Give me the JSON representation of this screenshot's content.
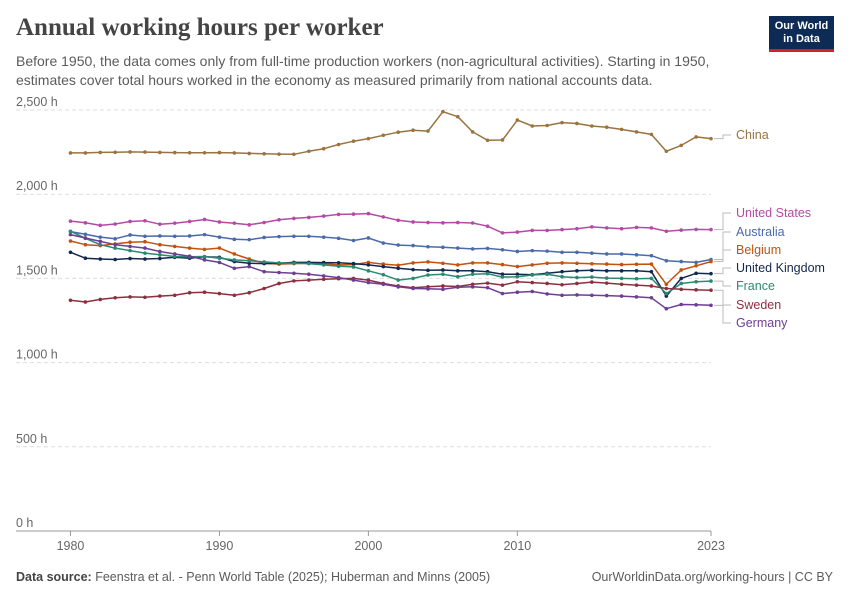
{
  "title": "Annual working hours per worker",
  "subtitle": "Before 1950, the data comes only from full-time production workers (non-agricultural activities). Starting in 1950, estimates cover total hours worked in the economy as measured primarily from national accounts data.",
  "logo": {
    "line1": "Our World",
    "line2": "in Data"
  },
  "footer": {
    "source_label": "Data source:",
    "source_text": "Feenstra et al. - Penn World Table (2025); Huberman and Minns (2005)",
    "url_text": "OurWorldinData.org/working-hours | CC BY"
  },
  "colors": {
    "brand": "#0d2b55",
    "accent": "#ce261e"
  },
  "chart_data": {
    "type": "line",
    "title": "Annual working hours per worker",
    "xlabel": "",
    "ylabel": "",
    "xlim": [
      1979.7,
      2023
    ],
    "ylim": [
      0,
      2500
    ],
    "x_tick_labels": [
      "1980",
      "1990",
      "2000",
      "2010",
      "2023"
    ],
    "x_ticks": [
      1980,
      1990,
      2000,
      2010,
      2023
    ],
    "y_ticks": [
      0,
      500,
      1000,
      1500,
      2000,
      2500
    ],
    "y_tick_labels": [
      "0 h",
      "500 h",
      "1,000 h",
      "1,500 h",
      "2,000 h",
      "2,500 h"
    ],
    "x": [
      1980,
      1981,
      1982,
      1983,
      1984,
      1985,
      1986,
      1987,
      1988,
      1989,
      1990,
      1991,
      1992,
      1993,
      1994,
      1995,
      1996,
      1997,
      1998,
      1999,
      2000,
      2001,
      2002,
      2003,
      2004,
      2005,
      2006,
      2007,
      2008,
      2009,
      2010,
      2011,
      2012,
      2013,
      2014,
      2015,
      2016,
      2017,
      2018,
      2019,
      2020,
      2021,
      2022,
      2023
    ],
    "series": [
      {
        "name": "China",
        "color": "#9a7340",
        "values": [
          2245,
          2245,
          2248,
          2249,
          2251,
          2250,
          2248,
          2247,
          2246,
          2246,
          2247,
          2245,
          2242,
          2240,
          2238,
          2237,
          2255,
          2270,
          2295,
          2315,
          2330,
          2350,
          2368,
          2380,
          2375,
          2490,
          2460,
          2370,
          2320,
          2322,
          2440,
          2405,
          2408,
          2425,
          2420,
          2405,
          2398,
          2385,
          2370,
          2355,
          2255,
          2290,
          2340,
          2330
        ]
      },
      {
        "name": "United States",
        "color": "#b44aa4",
        "values": [
          1840,
          1830,
          1815,
          1823,
          1838,
          1842,
          1822,
          1828,
          1838,
          1850,
          1835,
          1828,
          1818,
          1832,
          1848,
          1856,
          1862,
          1870,
          1880,
          1882,
          1885,
          1865,
          1845,
          1835,
          1832,
          1830,
          1832,
          1829,
          1810,
          1770,
          1775,
          1785,
          1785,
          1790,
          1795,
          1806,
          1800,
          1795,
          1803,
          1800,
          1780,
          1787,
          1791,
          1790
        ]
      },
      {
        "name": "Australia",
        "color": "#4a6aa8",
        "values": [
          1778,
          1762,
          1745,
          1735,
          1758,
          1750,
          1752,
          1750,
          1752,
          1760,
          1745,
          1732,
          1730,
          1743,
          1748,
          1750,
          1750,
          1745,
          1738,
          1725,
          1740,
          1710,
          1698,
          1695,
          1688,
          1685,
          1680,
          1675,
          1678,
          1670,
          1660,
          1665,
          1662,
          1655,
          1655,
          1650,
          1645,
          1645,
          1640,
          1635,
          1605,
          1600,
          1595,
          1612
        ]
      },
      {
        "name": "Belgium",
        "color": "#c4520e",
        "values": [
          1722,
          1700,
          1695,
          1705,
          1715,
          1718,
          1700,
          1690,
          1680,
          1672,
          1680,
          1645,
          1615,
          1590,
          1585,
          1588,
          1590,
          1588,
          1580,
          1582,
          1595,
          1585,
          1578,
          1592,
          1598,
          1590,
          1580,
          1592,
          1592,
          1582,
          1570,
          1580,
          1590,
          1592,
          1590,
          1587,
          1585,
          1582,
          1584,
          1585,
          1465,
          1550,
          1575,
          1600
        ]
      },
      {
        "name": "United Kingdom",
        "color": "#12284e",
        "values": [
          1655,
          1620,
          1615,
          1612,
          1618,
          1615,
          1618,
          1625,
          1620,
          1628,
          1625,
          1600,
          1590,
          1588,
          1590,
          1595,
          1595,
          1594,
          1593,
          1588,
          1580,
          1570,
          1560,
          1552,
          1548,
          1550,
          1545,
          1545,
          1540,
          1525,
          1525,
          1522,
          1530,
          1540,
          1545,
          1548,
          1545,
          1545,
          1545,
          1540,
          1395,
          1500,
          1530,
          1528
        ]
      },
      {
        "name": "France",
        "color": "#2a8a72",
        "values": [
          1780,
          1738,
          1700,
          1680,
          1665,
          1650,
          1640,
          1630,
          1628,
          1630,
          1620,
          1610,
          1605,
          1598,
          1592,
          1590,
          1588,
          1580,
          1572,
          1568,
          1545,
          1522,
          1490,
          1500,
          1520,
          1525,
          1510,
          1525,
          1528,
          1508,
          1510,
          1520,
          1525,
          1510,
          1505,
          1508,
          1502,
          1500,
          1498,
          1500,
          1410,
          1470,
          1480,
          1484
        ]
      },
      {
        "name": "Sweden",
        "color": "#8e2f3f",
        "values": [
          1370,
          1360,
          1375,
          1385,
          1390,
          1388,
          1395,
          1400,
          1415,
          1418,
          1410,
          1400,
          1415,
          1440,
          1470,
          1485,
          1490,
          1495,
          1498,
          1500,
          1490,
          1470,
          1455,
          1445,
          1450,
          1455,
          1452,
          1465,
          1472,
          1460,
          1480,
          1475,
          1470,
          1462,
          1470,
          1478,
          1472,
          1465,
          1460,
          1455,
          1440,
          1435,
          1432,
          1430
        ]
      },
      {
        "name": "Germany",
        "color": "#6d3e91",
        "values": [
          1760,
          1740,
          1720,
          1700,
          1690,
          1680,
          1660,
          1645,
          1632,
          1610,
          1595,
          1560,
          1570,
          1540,
          1535,
          1530,
          1525,
          1515,
          1505,
          1490,
          1475,
          1465,
          1450,
          1440,
          1438,
          1435,
          1448,
          1450,
          1445,
          1410,
          1418,
          1422,
          1408,
          1400,
          1402,
          1400,
          1398,
          1395,
          1390,
          1385,
          1320,
          1345,
          1343,
          1340
        ]
      }
    ]
  }
}
